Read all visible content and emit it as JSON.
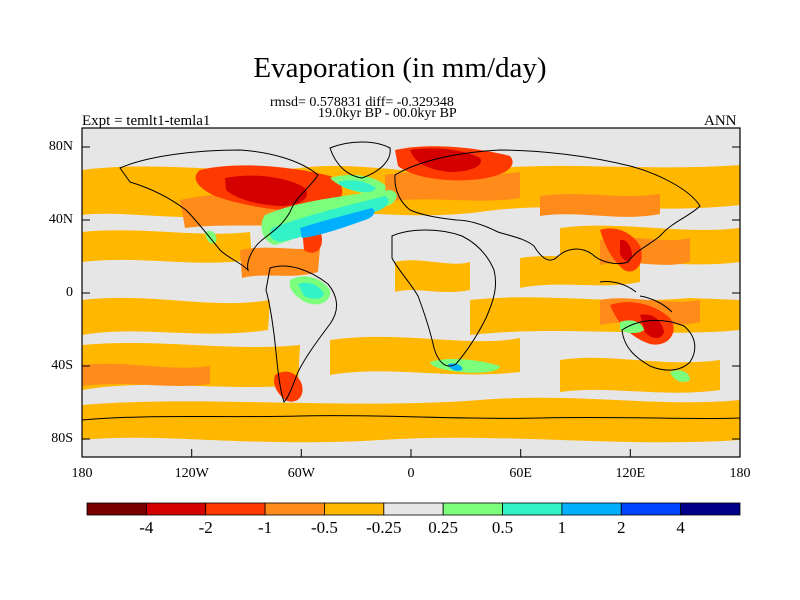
{
  "title": "Evaporation (in mm/day)",
  "stats_line1": "rmsd= 0.578831 diff= -0.329348",
  "stats_line2": "19.0kyr BP - 00.0kyr BP",
  "left_label": "Expt = temlt1-temla1",
  "right_label": "ANN",
  "map_data": {
    "type": "global-anomaly-map",
    "projection": "cylindrical-equidistant",
    "variable": "Evaporation",
    "units": "mm/day",
    "lat_ticks": [
      "80N",
      "40N",
      "0",
      "40S",
      "80S"
    ],
    "lon_ticks": [
      "180",
      "120W",
      "60W",
      "0",
      "60E",
      "120E",
      "180"
    ],
    "colorbar": {
      "levels": [
        "-4",
        "-2",
        "-1",
        "-0.5",
        "-0.25",
        "0.25",
        "0.5",
        "1",
        "2",
        "4"
      ],
      "colors": [
        "#7a0000",
        "#d40000",
        "#ff3a00",
        "#ff8c1a",
        "#ffb700",
        "#e6e6e6",
        "#7cff7c",
        "#33f2c8",
        "#00b0ff",
        "#0044ff",
        "#00008b"
      ]
    }
  }
}
